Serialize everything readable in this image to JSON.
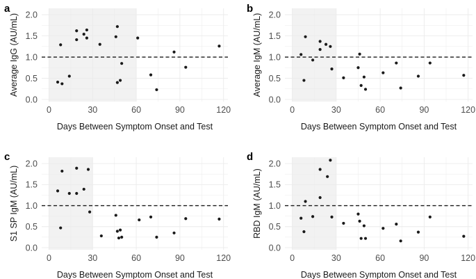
{
  "colors": {
    "background": "#ffffff",
    "grid": "#ebebeb",
    "shade": "#f2f2f2",
    "point": "#1a1a1a",
    "reference_line": "#1a1a1a",
    "text": "#4d4d4d"
  },
  "chart_data": [
    {
      "type": "scatter",
      "panel_label": "a",
      "xlabel": "Days Between Symptom Onset and Test",
      "ylabel": "Average IgG (AU/mL)",
      "xlim": [
        -5,
        123
      ],
      "ylim": [
        -0.05,
        2.15
      ],
      "xticks": [
        0,
        30,
        60,
        90,
        120
      ],
      "xtick_labels": [
        "0",
        "30",
        "60",
        "90",
        "120"
      ],
      "yticks": [
        0.0,
        0.5,
        1.0,
        1.5,
        2.0
      ],
      "ytick_labels": [
        "0.0",
        "0.5",
        "1.0",
        "1.5",
        "2.0"
      ],
      "reference_line": {
        "y": 1.0,
        "style": "dashed"
      },
      "shaded_region": {
        "x": [
          0,
          60
        ]
      },
      "x": [
        6,
        8,
        9,
        14,
        19,
        19,
        24,
        26,
        26,
        35,
        46,
        47,
        47,
        49,
        50,
        61,
        70,
        74,
        86,
        94,
        117
      ],
      "y": [
        0.41,
        1.29,
        0.37,
        0.55,
        1.62,
        1.41,
        1.54,
        1.64,
        1.45,
        1.3,
        1.48,
        1.72,
        0.4,
        0.45,
        0.85,
        1.45,
        0.58,
        0.23,
        1.12,
        0.76,
        1.26
      ]
    },
    {
      "type": "scatter",
      "panel_label": "b",
      "xlabel": "Days Between Symptom Onset and Test",
      "ylabel": "Average IgM (AU/mL)",
      "xlim": [
        -5,
        123
      ],
      "ylim": [
        -0.05,
        2.15
      ],
      "xticks": [
        0,
        30,
        60,
        90,
        120
      ],
      "xtick_labels": [
        "0",
        "30",
        "60",
        "90",
        "120"
      ],
      "yticks": [
        0.0,
        0.5,
        1.0,
        1.5,
        2.0
      ],
      "ytick_labels": [
        "0.0",
        "0.5",
        "1.0",
        "1.5",
        "2.0"
      ],
      "reference_line": {
        "y": 1.0,
        "style": "dashed"
      },
      "shaded_region": {
        "x": [
          0,
          30
        ]
      },
      "x": [
        6,
        8,
        9,
        14,
        19,
        19,
        23,
        26,
        27,
        35,
        45,
        46,
        47,
        49,
        50,
        62,
        71,
        74,
        86,
        94,
        117
      ],
      "y": [
        1.06,
        0.45,
        1.48,
        0.93,
        1.37,
        1.18,
        1.3,
        1.25,
        0.72,
        0.51,
        0.75,
        1.07,
        0.33,
        0.53,
        0.24,
        0.63,
        0.86,
        0.27,
        0.55,
        0.86,
        0.57
      ]
    },
    {
      "type": "scatter",
      "panel_label": "c",
      "xlabel": "Days Between Symptom Onset and Test",
      "ylabel": "S1 SP IgM (AU/mL)",
      "xlim": [
        -5,
        123
      ],
      "ylim": [
        -0.05,
        2.15
      ],
      "xticks": [
        0,
        30,
        60,
        90,
        120
      ],
      "xtick_labels": [
        "0",
        "30",
        "60",
        "90",
        "120"
      ],
      "yticks": [
        0.0,
        0.5,
        1.0,
        1.5,
        2.0
      ],
      "ytick_labels": [
        "0.0",
        "0.5",
        "1.0",
        "1.5",
        "2.0"
      ],
      "reference_line": {
        "y": 1.0,
        "style": "dashed"
      },
      "shaded_region": {
        "x": [
          0,
          30
        ]
      },
      "x": [
        6,
        8,
        9,
        14,
        19,
        19,
        24,
        27,
        28,
        36,
        46,
        47,
        48,
        49,
        50,
        62,
        70,
        74,
        86,
        94,
        117
      ],
      "y": [
        1.35,
        0.47,
        1.82,
        1.29,
        1.89,
        1.29,
        1.39,
        1.86,
        0.85,
        0.28,
        0.77,
        0.39,
        0.23,
        0.42,
        0.25,
        0.66,
        0.73,
        0.25,
        0.35,
        0.69,
        0.68
      ]
    },
    {
      "type": "scatter",
      "panel_label": "d",
      "xlabel": "Days Between Symptom Onset and Test",
      "ylabel": "RBD IgM (AU/mL)",
      "xlim": [
        -5,
        123
      ],
      "ylim": [
        -0.05,
        2.15
      ],
      "xticks": [
        0,
        30,
        60,
        90,
        120
      ],
      "xtick_labels": [
        "0",
        "30",
        "60",
        "90",
        "120"
      ],
      "yticks": [
        0.0,
        0.5,
        1.0,
        1.5,
        2.0
      ],
      "ytick_labels": [
        "0.0",
        "0.5",
        "1.0",
        "1.5",
        "2.0"
      ],
      "reference_line": {
        "y": 1.0,
        "style": "dashed"
      },
      "shaded_region": {
        "x": [
          0,
          30
        ]
      },
      "x": [
        6,
        8,
        9,
        14,
        19,
        19,
        24,
        26,
        27,
        35,
        45,
        46,
        47,
        49,
        50,
        62,
        71,
        74,
        86,
        94,
        117
      ],
      "y": [
        0.7,
        0.38,
        1.1,
        0.74,
        1.86,
        1.19,
        1.69,
        2.08,
        0.73,
        0.58,
        0.8,
        0.63,
        0.22,
        0.52,
        0.22,
        0.46,
        0.56,
        0.16,
        0.37,
        0.73,
        0.27
      ]
    }
  ]
}
